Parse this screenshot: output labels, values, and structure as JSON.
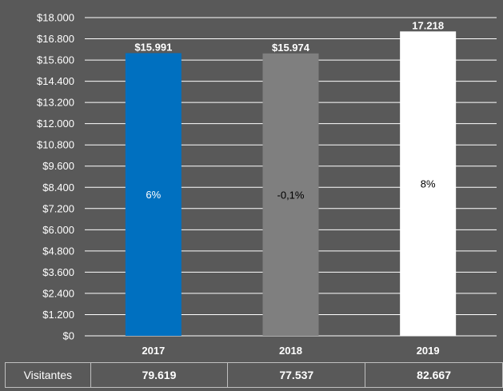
{
  "chart_data": {
    "type": "bar",
    "categories": [
      "2017",
      "2018",
      "2019"
    ],
    "values": [
      15991,
      15974,
      17218
    ],
    "value_labels": [
      "$15.991",
      "$15.974",
      "17.218"
    ],
    "pct_labels": [
      "6%",
      "-0,1%",
      "8%"
    ],
    "bar_colors": [
      "#0070C0",
      "#7F7F7F",
      "#FFFFFF"
    ],
    "pct_label_colors": [
      "#FFFFFF",
      "#000000",
      "#000000"
    ],
    "y_ticks": [
      {
        "value": 0,
        "label": "$0"
      },
      {
        "value": 1200,
        "label": "$1.200"
      },
      {
        "value": 2400,
        "label": "$2.400"
      },
      {
        "value": 3600,
        "label": "$3.600"
      },
      {
        "value": 4800,
        "label": "$4.800"
      },
      {
        "value": 6000,
        "label": "$6.000"
      },
      {
        "value": 7200,
        "label": "$7.200"
      },
      {
        "value": 8400,
        "label": "$8.400"
      },
      {
        "value": 9600,
        "label": "$9.600"
      },
      {
        "value": 10800,
        "label": "$10.800"
      },
      {
        "value": 12000,
        "label": "$12.000"
      },
      {
        "value": 13200,
        "label": "$13.200"
      },
      {
        "value": 14400,
        "label": "$14.400"
      },
      {
        "value": 15600,
        "label": "$15.600"
      },
      {
        "value": 16800,
        "label": "$16.800"
      },
      {
        "value": 18000,
        "label": "$18.000"
      }
    ],
    "ylim": [
      0,
      18000
    ],
    "grid": true,
    "background": "#595959"
  },
  "table": {
    "row_label": "Visitantes",
    "values": [
      "79.619",
      "77.537",
      "82.667"
    ]
  }
}
